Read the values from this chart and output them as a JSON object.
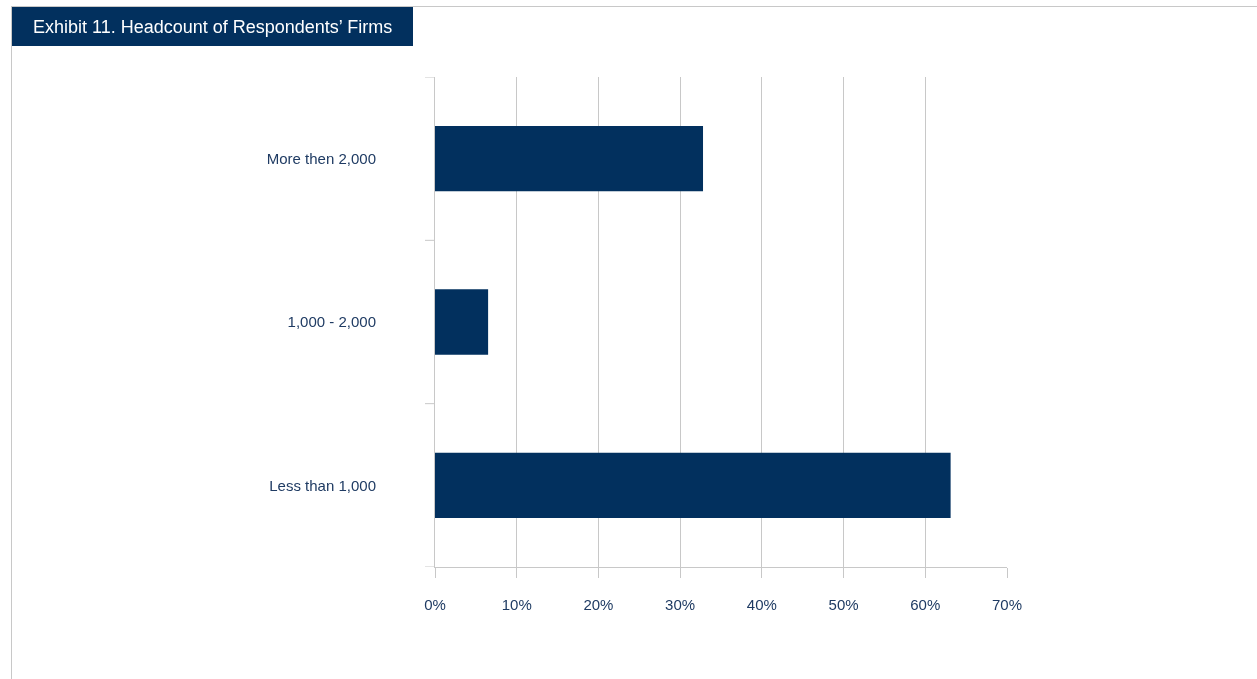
{
  "chart_data": {
    "type": "bar",
    "orientation": "horizontal",
    "title": "Exhibit 11. Headcount of Respondents’ Firms",
    "categories": [
      "More then 2,000",
      "1,000 - 2,000",
      "Less than 1,000"
    ],
    "values": [
      32.8,
      6.5,
      63.1
    ],
    "color": "#02305e",
    "xlim": [
      0,
      70
    ],
    "xticks": [
      {
        "value": 0,
        "label": "0%"
      },
      {
        "value": 10,
        "label": "10%"
      },
      {
        "value": 20,
        "label": "20%"
      },
      {
        "value": 30,
        "label": "30%"
      },
      {
        "value": 40,
        "label": "40%"
      },
      {
        "value": 50,
        "label": "50%"
      },
      {
        "value": 60,
        "label": "60%"
      },
      {
        "value": 70,
        "label": "70%"
      }
    ],
    "grid": "x"
  }
}
